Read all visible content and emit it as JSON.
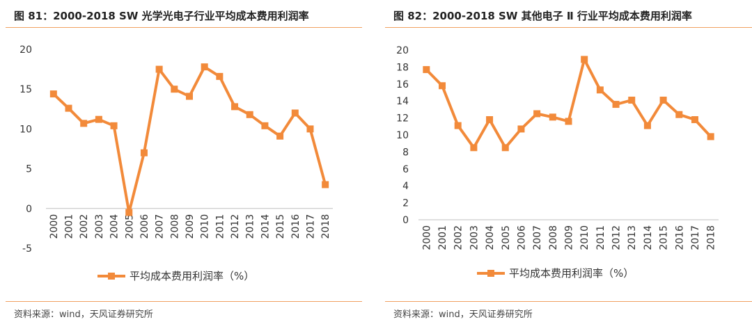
{
  "source_text": "资料来源：wind，天风证券研究所",
  "series_color": "#F28A3A",
  "chart_data": [
    {
      "type": "line",
      "title": "图 81：2000-2018 SW 光学光电子行业平均成本费用利润率",
      "x": [
        "2000",
        "2001",
        "2002",
        "2003",
        "2004",
        "2005",
        "2006",
        "2007",
        "2008",
        "2009",
        "2010",
        "2011",
        "2012",
        "2013",
        "2014",
        "2015",
        "2016",
        "2017",
        "2018"
      ],
      "series": [
        {
          "name": "平均成本费用利润率（%）",
          "values": [
            14.4,
            12.6,
            10.7,
            11.2,
            10.4,
            -0.5,
            7.0,
            17.5,
            15.0,
            14.1,
            17.8,
            16.6,
            12.8,
            11.8,
            10.4,
            9.1,
            12.0,
            10.0,
            3.0
          ]
        }
      ],
      "yticks": [
        -5,
        0,
        5,
        10,
        15,
        20
      ],
      "ylim": [
        -5,
        20
      ],
      "grid": false,
      "legend": "bottom"
    },
    {
      "type": "line",
      "title": "图 82：2000-2018 SW 其他电子 Ⅱ 行业平均成本费用利润率",
      "x": [
        "2000",
        "2001",
        "2002",
        "2003",
        "2004",
        "2005",
        "2006",
        "2007",
        "2008",
        "2009",
        "2010",
        "2011",
        "2012",
        "2013",
        "2014",
        "2015",
        "2016",
        "2017",
        "2018"
      ],
      "series": [
        {
          "name": "平均成本费用利润率（%）",
          "values": [
            17.7,
            15.8,
            11.1,
            8.5,
            11.8,
            8.5,
            10.7,
            12.5,
            12.1,
            11.6,
            18.9,
            15.3,
            13.6,
            14.1,
            11.1,
            14.1,
            12.4,
            11.8,
            9.8
          ]
        }
      ],
      "yticks": [
        0,
        2,
        4,
        6,
        8,
        10,
        12,
        14,
        16,
        18,
        20
      ],
      "ylim": [
        0,
        20
      ],
      "grid": false,
      "legend": "bottom"
    }
  ]
}
